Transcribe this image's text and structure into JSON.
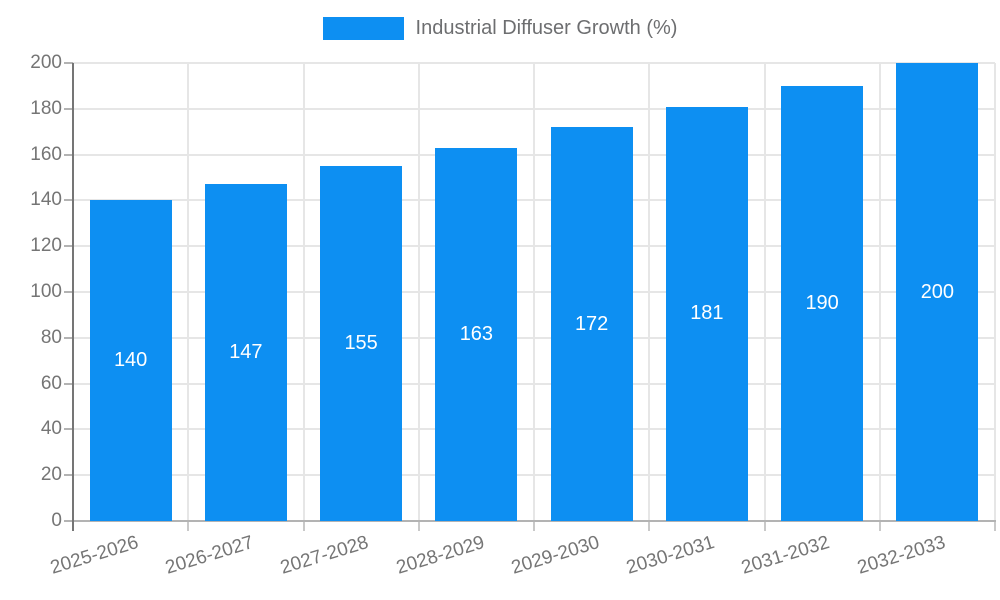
{
  "chart_data": {
    "type": "bar",
    "title": "",
    "legend_label": "Industrial Diffuser Growth (%)",
    "legend_position": "top",
    "categories": [
      "2025-2026",
      "2026-2027",
      "2027-2028",
      "2028-2029",
      "2029-2030",
      "2030-2031",
      "2031-2032",
      "2032-2033"
    ],
    "values": [
      140,
      147,
      155,
      163,
      172,
      181,
      190,
      200
    ],
    "xlabel": "",
    "ylabel": "",
    "ylim": [
      0,
      200
    ],
    "ytick_step": 20,
    "yticks": [
      0,
      20,
      40,
      60,
      80,
      100,
      120,
      140,
      160,
      180,
      200
    ],
    "grid": true,
    "value_labels_shown": true,
    "x_label_rotation_deg": -17,
    "colors": {
      "bar": "#0D8FF2",
      "value_label": "#FFFFFF",
      "tick_label": "#757575",
      "legend_text": "#6D6E70",
      "grid_line": "#E6E6E6",
      "below_axis_tick": "#C9C9C9",
      "y_axis_line": "#757575",
      "x_axis_line": "#B3B3B3",
      "background": "#FFFFFF"
    }
  }
}
